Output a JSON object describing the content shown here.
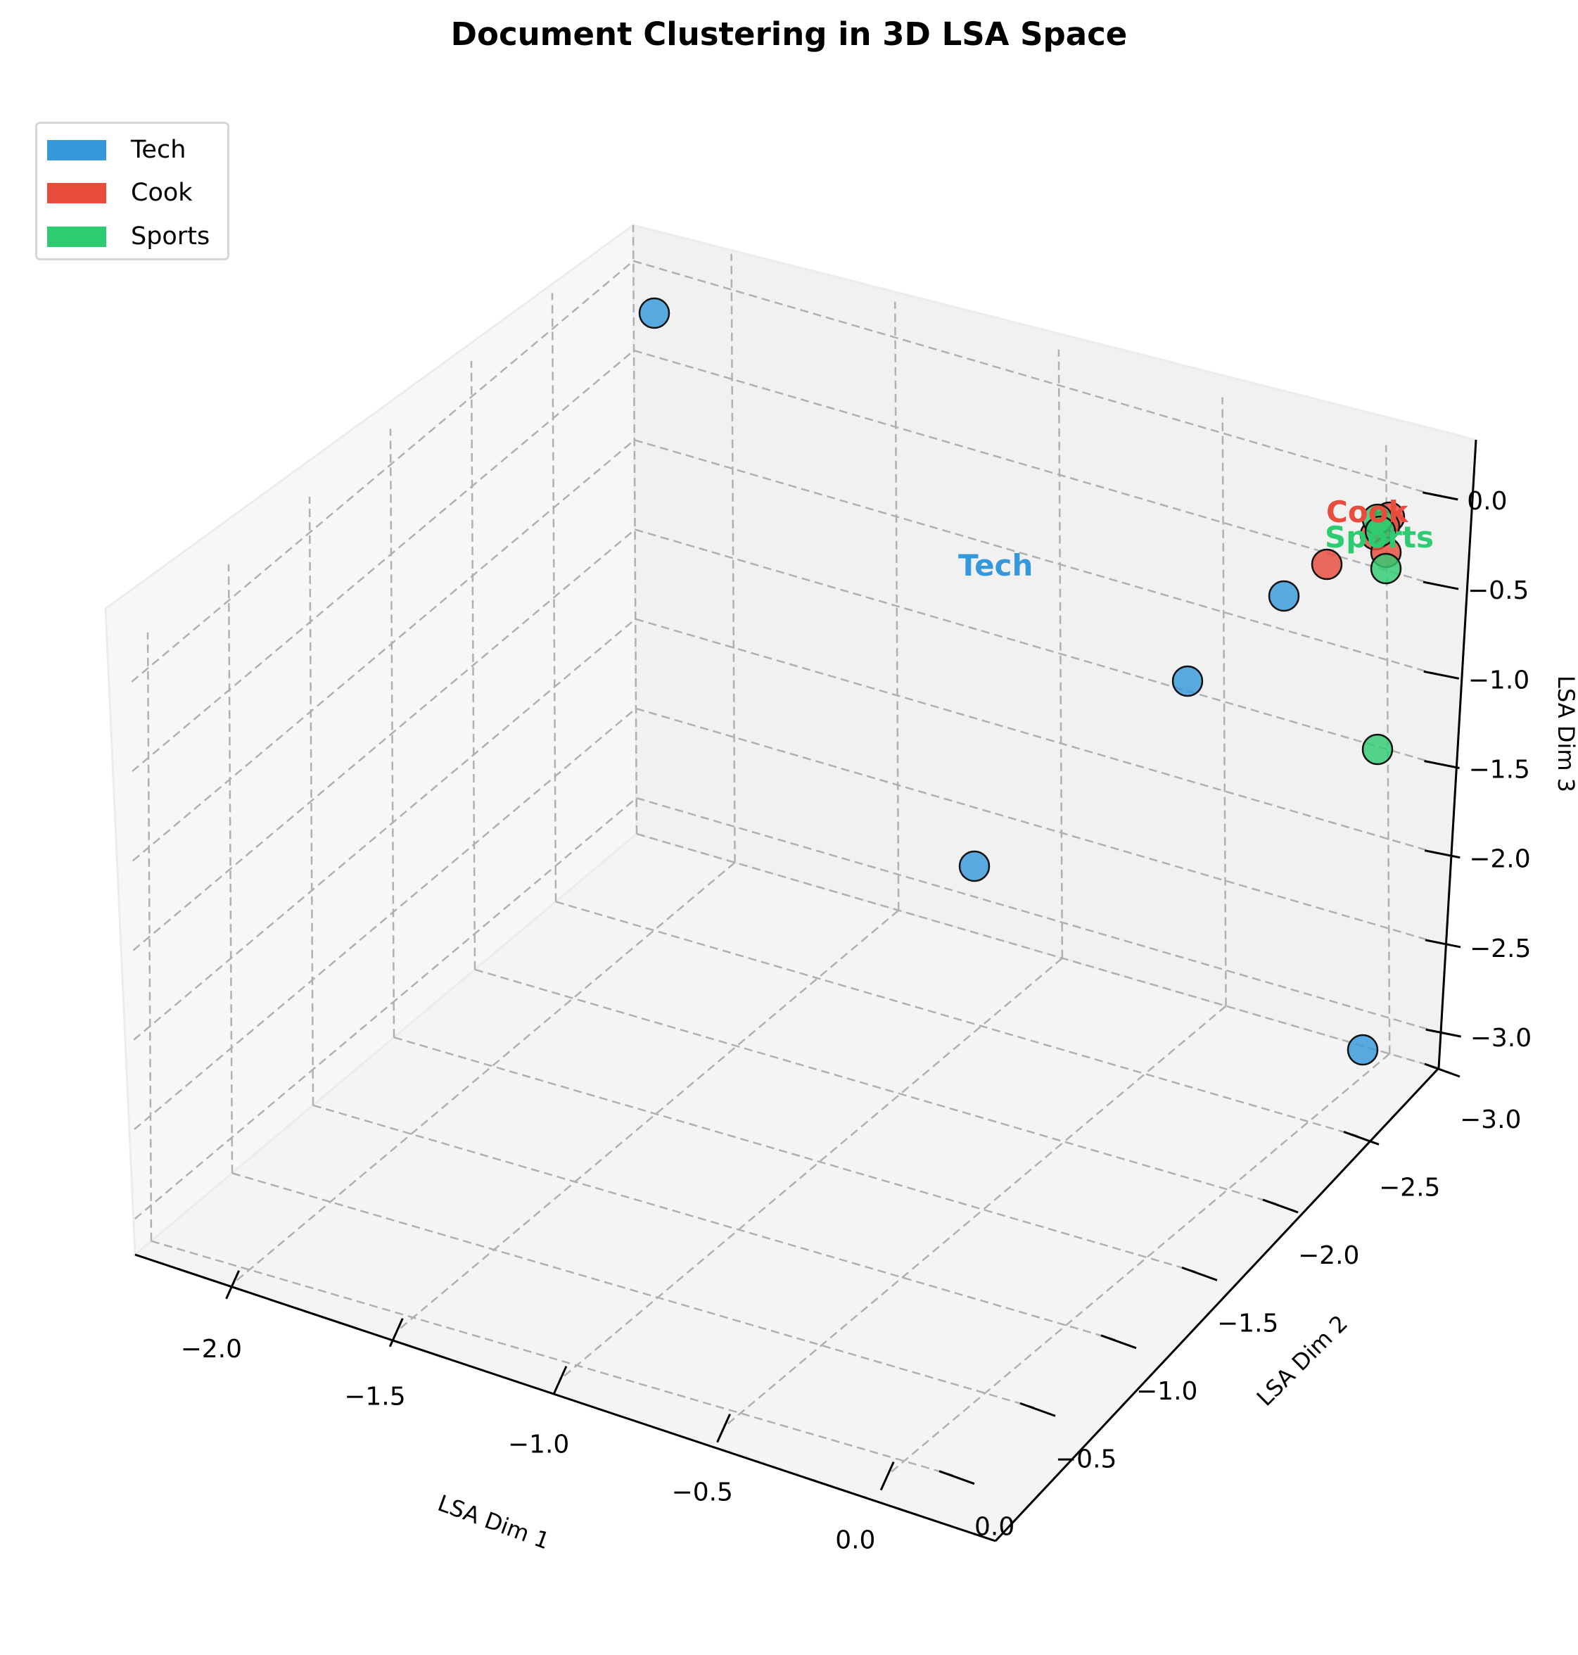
{
  "chart_data": {
    "type": "scatter",
    "subtype": "3d",
    "title": "Document Clustering in 3D LSA Space",
    "xlabel": "LSA Dim 1",
    "ylabel": "LSA Dim 2",
    "zlabel": "LSA Dim 3",
    "xlim": [
      -2.3,
      0.15
    ],
    "ylim": [
      -3.0,
      0.1
    ],
    "zlim": [
      -3.2,
      0.2
    ],
    "x_ticks": [
      "−2.0",
      "−1.5",
      "−1.0",
      "−0.5",
      "0.0"
    ],
    "y_ticks": [
      "0.0",
      "−0.5",
      "−1.0",
      "−1.5",
      "−2.0",
      "−2.5",
      "−3.0"
    ],
    "z_ticks": [
      "0.0",
      "−0.5",
      "−1.0",
      "−1.5",
      "−2.0",
      "−2.5",
      "−3.0"
    ],
    "grid": true,
    "legend_position": "upper left",
    "series": [
      {
        "name": "Tech",
        "color": "#3498db",
        "points": [
          {
            "x": -2.2,
            "y": -0.1,
            "z": -0.05
          },
          {
            "x": -0.1,
            "y": -0.1,
            "z": -0.5
          },
          {
            "x": -0.4,
            "y": -0.4,
            "z": -0.9
          },
          {
            "x": -1.0,
            "y": -0.8,
            "z": -1.5
          },
          {
            "x": -0.05,
            "y": -1.6,
            "z": -2.9
          }
        ]
      },
      {
        "name": "Cook",
        "color": "#e74c3c",
        "points": [
          {
            "x": -0.05,
            "y": -0.05,
            "z": -0.1
          },
          {
            "x": -0.05,
            "y": -0.1,
            "z": -0.12
          },
          {
            "x": -0.1,
            "y": -0.05,
            "z": -0.15
          },
          {
            "x": -0.1,
            "y": -0.2,
            "z": -0.2
          },
          {
            "x": -0.25,
            "y": -0.1,
            "z": -0.3
          }
        ]
      },
      {
        "name": "Sports",
        "color": "#2ecc71",
        "points": [
          {
            "x": -0.05,
            "y": -0.05,
            "z": -0.1
          },
          {
            "x": -0.05,
            "y": -0.1,
            "z": -0.12
          },
          {
            "x": -0.02,
            "y": -0.15,
            "z": -0.4
          },
          {
            "x": -0.05,
            "y": -0.3,
            "z": -1.3
          }
        ]
      }
    ],
    "annotations": [
      {
        "text": "Tech",
        "color": "#3498db"
      },
      {
        "text": "Cook",
        "color": "#e74c3c"
      },
      {
        "text": "Sports",
        "color": "#2ecc71"
      }
    ]
  },
  "legend": {
    "items": [
      {
        "label": "Tech",
        "color": "#3498db"
      },
      {
        "label": "Cook",
        "color": "#e74c3c"
      },
      {
        "label": "Sports",
        "color": "#2ecc71"
      }
    ]
  }
}
